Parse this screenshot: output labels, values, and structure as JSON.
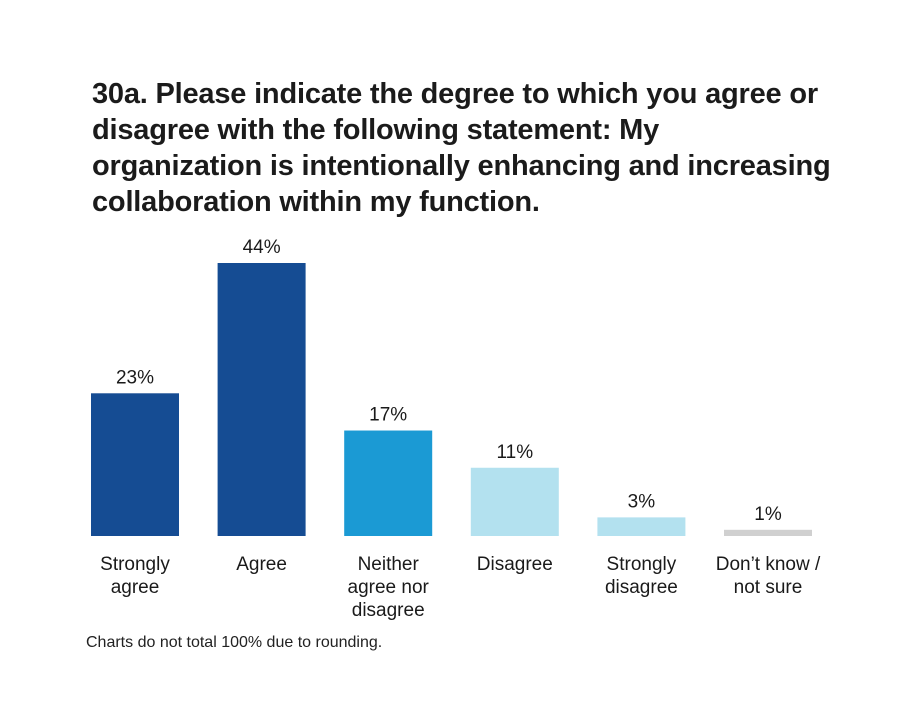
{
  "chart_data": {
    "type": "bar",
    "title": "30a. Please indicate the degree to which you agree or disagree with the following statement: My organization is intentionally enhancing and increasing collaboration within my function.",
    "categories": [
      [
        "Strongly",
        "agree"
      ],
      [
        "Agree"
      ],
      [
        "Neither",
        "agree nor",
        "disagree"
      ],
      [
        "Disagree"
      ],
      [
        "Strongly",
        "disagree"
      ],
      [
        "Don’t know /",
        "not sure"
      ]
    ],
    "values": [
      23,
      44,
      17,
      11,
      3,
      1
    ],
    "value_labels": [
      "23%",
      "44%",
      "17%",
      "11%",
      "3%",
      "1%"
    ],
    "colors": [
      "#154c93",
      "#154c93",
      "#1b9ad4",
      "#b3e1ef",
      "#b3e1ef",
      "#d0d0d0"
    ],
    "xlabel": "",
    "ylabel": "",
    "ylim": [
      0,
      44
    ],
    "grid": false,
    "legend": "none"
  },
  "footnote": "Charts do not total 100% due to rounding."
}
